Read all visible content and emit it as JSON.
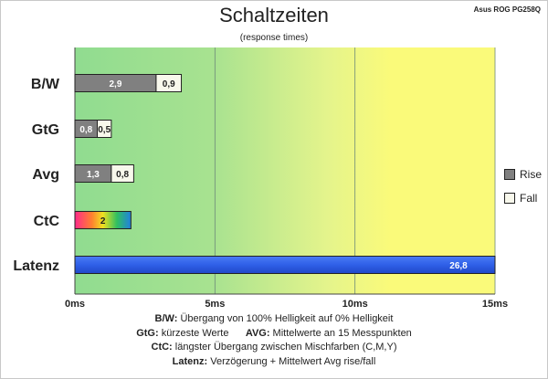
{
  "header": {
    "title": "Schaltzeiten",
    "subtitle": "(response times)",
    "model": "Asus ROG PG258Q"
  },
  "chart_data": {
    "type": "bar",
    "orientation": "horizontal",
    "stacked": true,
    "categories": [
      "B/W",
      "GtG",
      "Avg",
      "CtC",
      "Latenz"
    ],
    "series": [
      {
        "name": "Rise",
        "values": [
          2.9,
          0.8,
          1.3,
          null,
          null
        ],
        "color": "#808080"
      },
      {
        "name": "Fall",
        "values": [
          0.9,
          0.5,
          0.8,
          null,
          null
        ],
        "color": "#f8f8ec"
      }
    ],
    "ctc": {
      "value": 2,
      "label": "2"
    },
    "latenz": {
      "value": 26.8,
      "label": "26,8",
      "color": "#2f5fe8"
    },
    "value_labels": {
      "rise": [
        "2,9",
        "0,8",
        "1,3"
      ],
      "fall": [
        "0,9",
        "0,5",
        "0,8"
      ]
    },
    "xlim": [
      0,
      15
    ],
    "xticks": [
      0,
      5,
      10,
      15
    ],
    "xtick_labels": [
      "0ms",
      "5ms",
      "10ms",
      "15ms"
    ],
    "grid": true,
    "background_zones": [
      "#90dc90",
      "#e4f48c",
      "#fafa7a"
    ],
    "legend_position": "right"
  },
  "legend": [
    {
      "label": "Rise",
      "color": "#808080"
    },
    {
      "label": "Fall",
      "color": "#f8f8ec"
    }
  ],
  "notes": [
    {
      "key": "B/W:",
      "text": " Übergang von 100% Helligkeit auf 0% Helligkeit"
    },
    {
      "key": "GtG:",
      "text": " kürzeste Werte",
      "key2": "AVG:",
      "text2": " Mittelwerte an 15 Messpunkten"
    },
    {
      "key": "CtC:",
      "text": " längster Übergang zwischen Mischfarben (C,M,Y)"
    },
    {
      "key": "Latenz:",
      "text": " Verzögerung + Mittelwert Avg rise/fall"
    }
  ]
}
